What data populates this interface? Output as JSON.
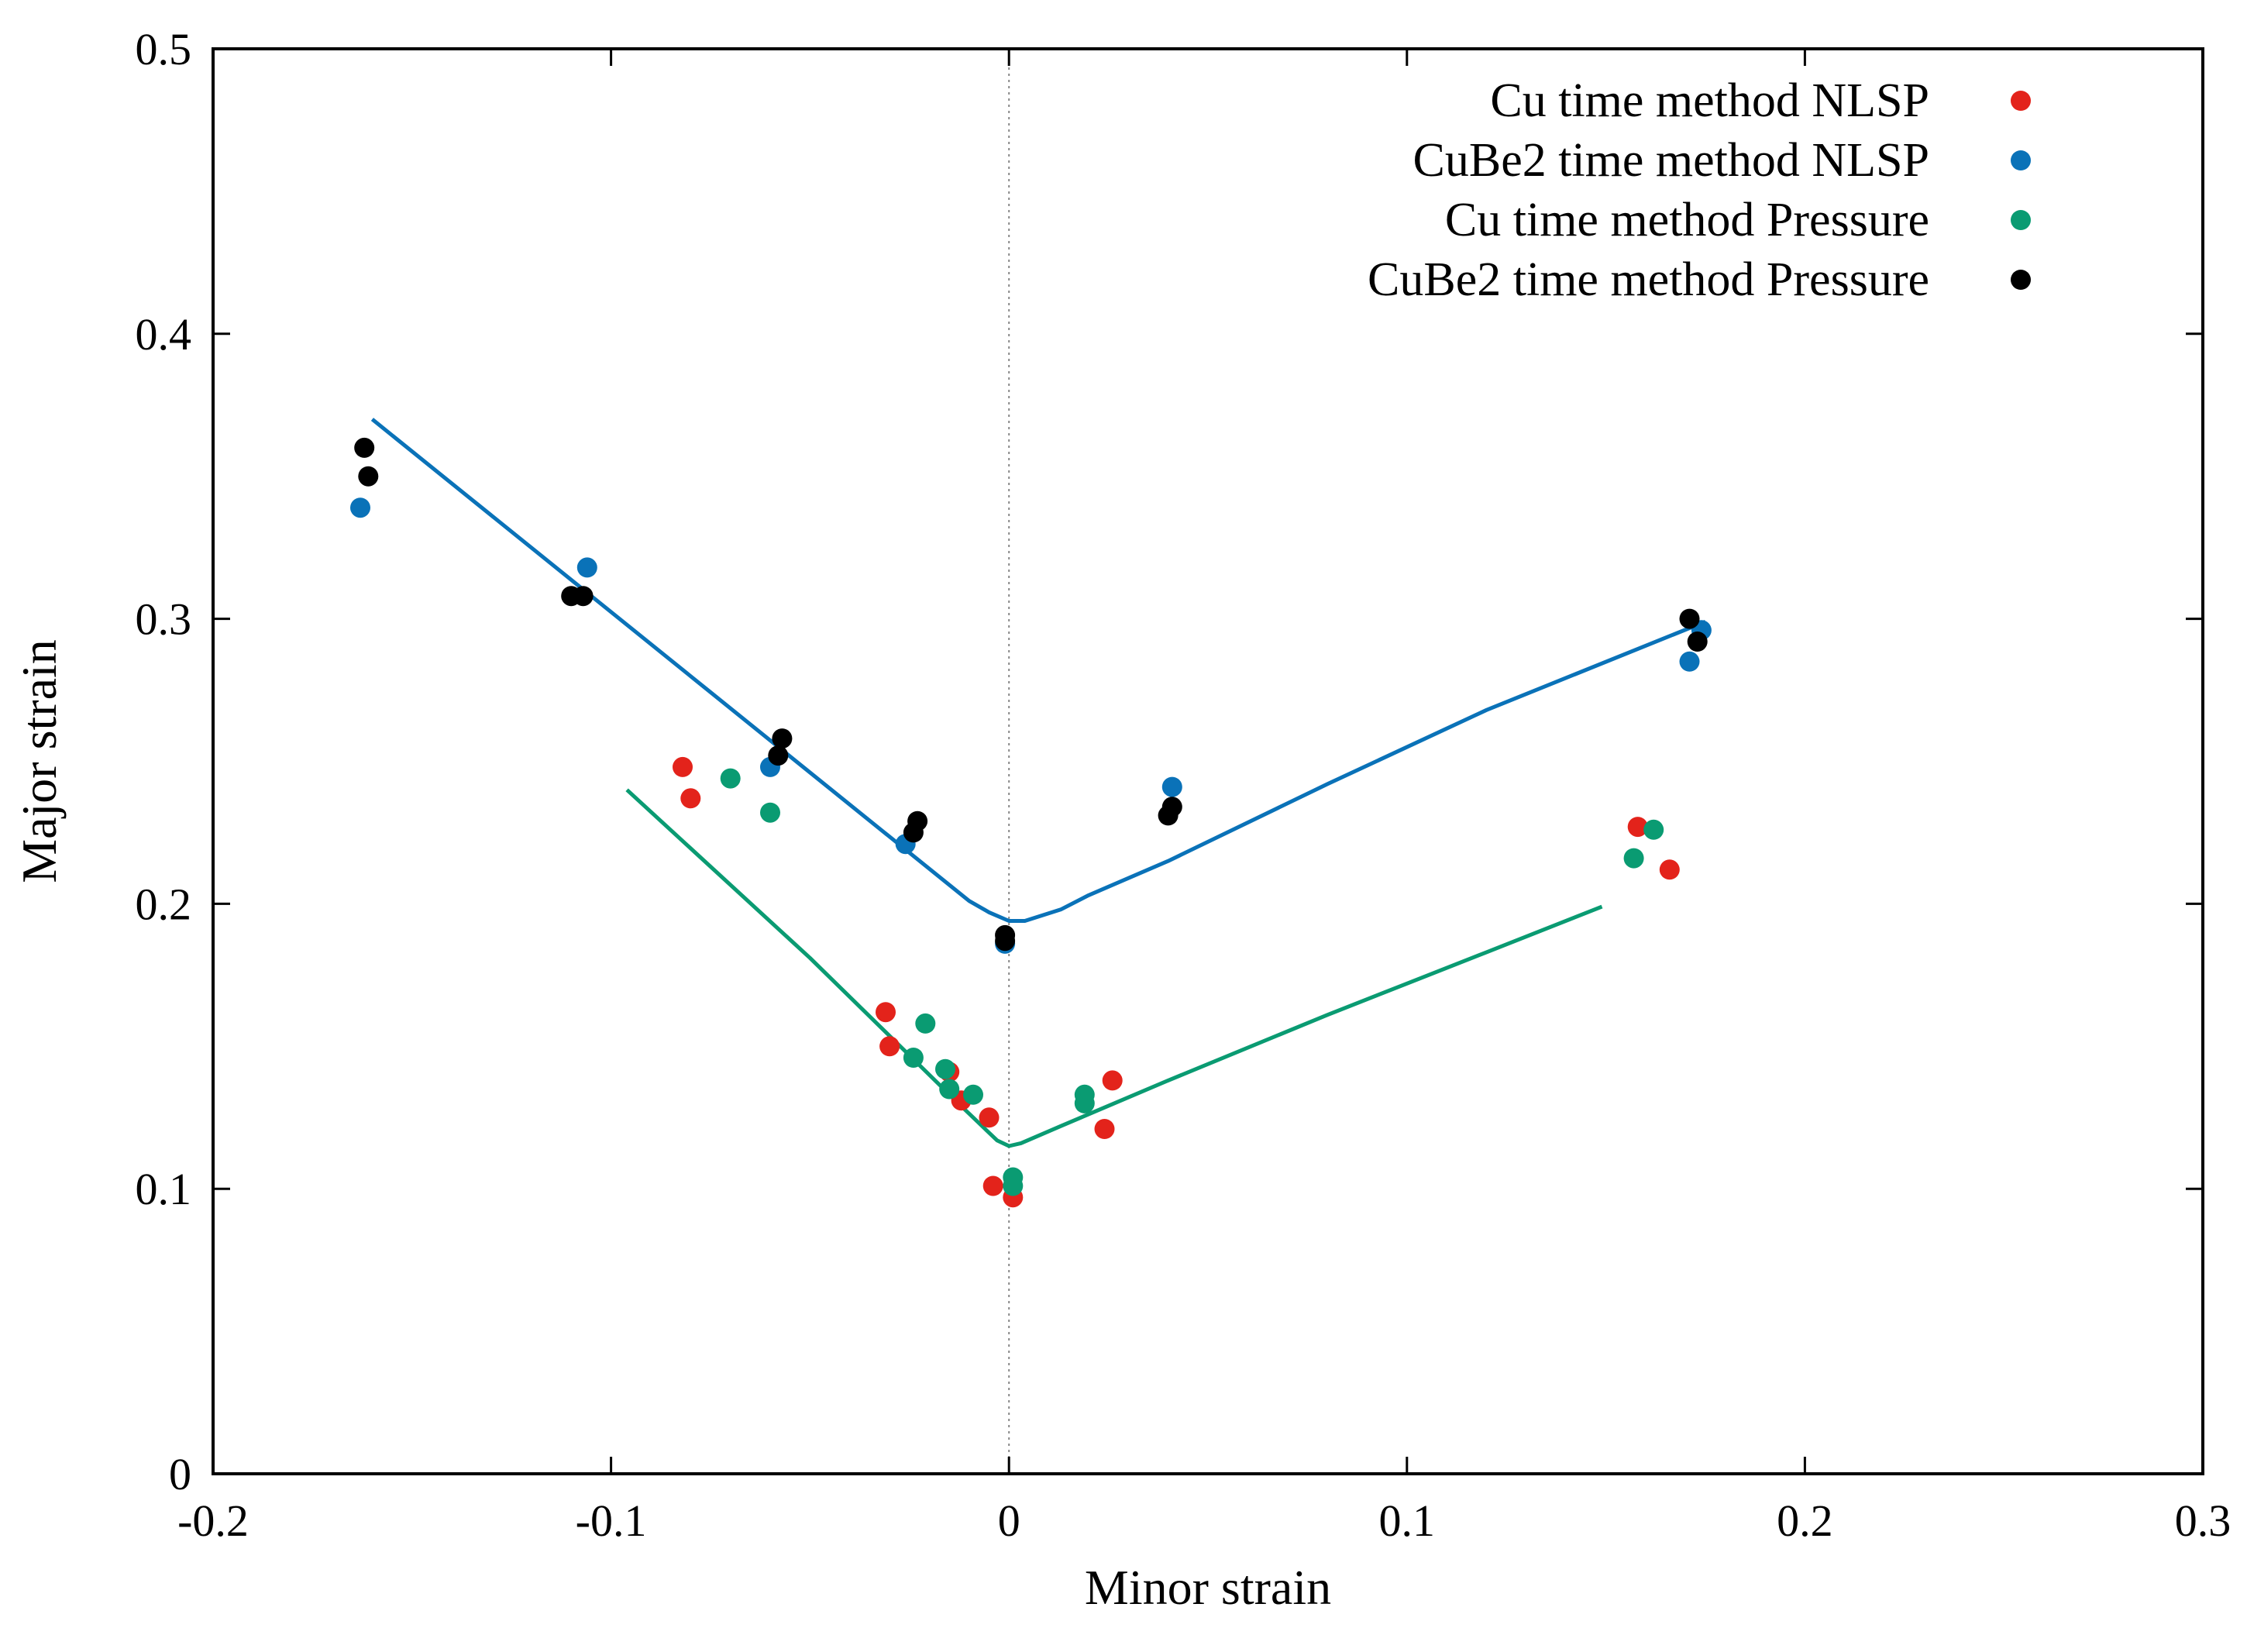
{
  "chart_data": {
    "type": "scatter",
    "title": "",
    "xlabel": "Minor strain",
    "ylabel": "Major strain",
    "xlim": [
      -0.2,
      0.3
    ],
    "ylim": [
      0,
      0.5
    ],
    "xticks": [
      -0.2,
      -0.1,
      0,
      0.1,
      0.2,
      0.3
    ],
    "xtick_labels": [
      "-0.2",
      "-0.1",
      "0",
      "0.1",
      "0.2",
      "0.3"
    ],
    "yticks": [
      0,
      0.1,
      0.2,
      0.3,
      0.4,
      0.5
    ],
    "ytick_labels": [
      "0",
      "0.1",
      "0.2",
      "0.3",
      "0.4",
      "0.5"
    ],
    "grid": false,
    "legend_position": "top-right",
    "reference_line": {
      "x": 0,
      "style": "dotted",
      "color": "#888888"
    },
    "series": [
      {
        "name": "Cu time method NLSP",
        "color": "#e3231b",
        "points": [
          [
            -0.082,
            0.248
          ],
          [
            -0.08,
            0.237
          ],
          [
            -0.031,
            0.162
          ],
          [
            -0.03,
            0.15
          ],
          [
            -0.015,
            0.141
          ],
          [
            -0.012,
            0.131
          ],
          [
            -0.005,
            0.125
          ],
          [
            -0.004,
            0.101
          ],
          [
            0.001,
            0.097
          ],
          [
            0.024,
            0.121
          ],
          [
            0.026,
            0.138
          ],
          [
            0.158,
            0.227
          ],
          [
            0.166,
            0.212
          ]
        ]
      },
      {
        "name": "CuBe2 time method NLSP",
        "color": "#0a72b8",
        "points": [
          [
            -0.163,
            0.339
          ],
          [
            -0.106,
            0.318
          ],
          [
            -0.06,
            0.248
          ],
          [
            -0.026,
            0.221
          ],
          [
            -0.001,
            0.186
          ],
          [
            0.041,
            0.241
          ],
          [
            0.171,
            0.285
          ],
          [
            0.174,
            0.296
          ]
        ]
      },
      {
        "name": "Cu time method Pressure",
        "color": "#0a9b72",
        "points": [
          [
            -0.07,
            0.244
          ],
          [
            -0.06,
            0.232
          ],
          [
            -0.021,
            0.158
          ],
          [
            -0.024,
            0.146
          ],
          [
            -0.016,
            0.142
          ],
          [
            -0.015,
            0.135
          ],
          [
            -0.009,
            0.133
          ],
          [
            0.001,
            0.104
          ],
          [
            0.001,
            0.101
          ],
          [
            0.019,
            0.133
          ],
          [
            0.019,
            0.13
          ],
          [
            0.157,
            0.216
          ],
          [
            0.162,
            0.226
          ]
        ]
      },
      {
        "name": "CuBe2 time method Pressure",
        "color": "#000000",
        "points": [
          [
            -0.162,
            0.36
          ],
          [
            -0.161,
            0.35
          ],
          [
            -0.11,
            0.308
          ],
          [
            -0.107,
            0.308
          ],
          [
            -0.057,
            0.258
          ],
          [
            -0.058,
            0.252
          ],
          [
            -0.023,
            0.229
          ],
          [
            -0.024,
            0.225
          ],
          [
            -0.001,
            0.189
          ],
          [
            -0.001,
            0.187
          ],
          [
            0.04,
            0.231
          ],
          [
            0.041,
            0.234
          ],
          [
            0.171,
            0.3
          ],
          [
            0.173,
            0.292
          ]
        ]
      }
    ],
    "lines": [
      {
        "name": "CuBe2 fitted curve",
        "color": "#0a72b8",
        "points": [
          [
            -0.16,
            0.37
          ],
          [
            -0.01,
            0.201
          ],
          [
            -0.005,
            0.197
          ],
          [
            0.0,
            0.194
          ],
          [
            0.004,
            0.194
          ],
          [
            0.013,
            0.198
          ],
          [
            0.02,
            0.203
          ],
          [
            0.04,
            0.215
          ],
          [
            0.08,
            0.242
          ],
          [
            0.12,
            0.268
          ],
          [
            0.175,
            0.299
          ]
        ]
      },
      {
        "name": "Cu fitted curve",
        "color": "#0a9b72",
        "points": [
          [
            -0.096,
            0.24
          ],
          [
            -0.05,
            0.181
          ],
          [
            -0.012,
            0.129
          ],
          [
            -0.006,
            0.121
          ],
          [
            -0.003,
            0.117
          ],
          [
            0.0,
            0.115
          ],
          [
            0.003,
            0.116
          ],
          [
            0.013,
            0.122
          ],
          [
            0.04,
            0.138
          ],
          [
            0.08,
            0.161
          ],
          [
            0.12,
            0.183
          ],
          [
            0.149,
            0.199
          ]
        ]
      }
    ]
  }
}
